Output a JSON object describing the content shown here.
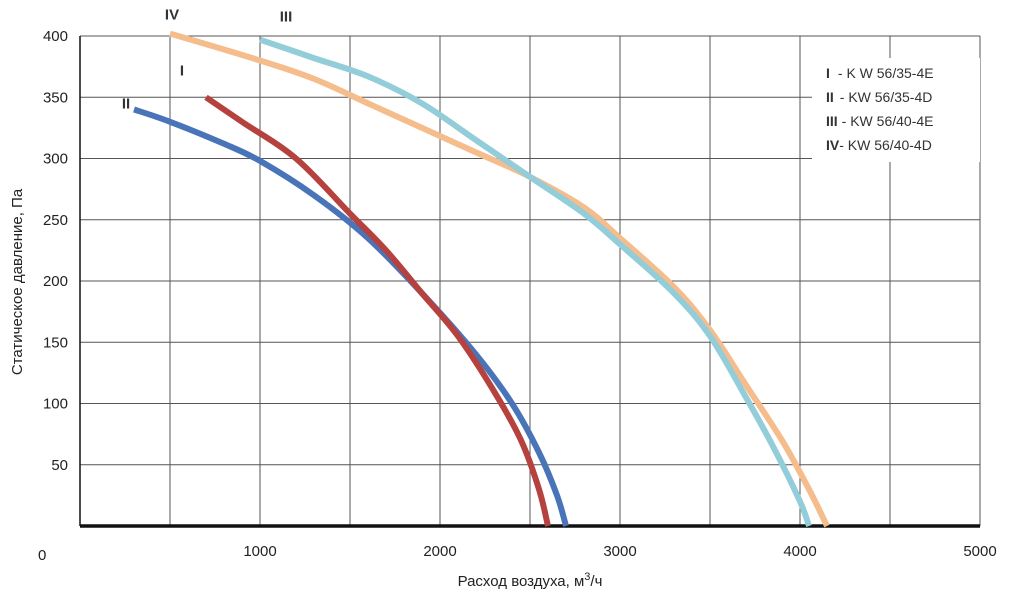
{
  "chart_data": {
    "type": "line",
    "xlabel": "Расход воздуха, м",
    "xlabel_sup": "3",
    "xlabel_suffix": "/ч",
    "ylabel": "Статическое давление, Па",
    "origin_label": "0",
    "xlim": [
      0,
      5000
    ],
    "ylim": [
      0,
      400
    ],
    "x_ticks": [
      "1000",
      "2000",
      "3000",
      "4000",
      "5000"
    ],
    "y_ticks": [
      "50",
      "100",
      "150",
      "200",
      "250",
      "300",
      "350",
      "400"
    ],
    "grid": true,
    "legend_position": "top-right",
    "legend": [
      {
        "roman": "I",
        "text": "- K W 56/35-4E"
      },
      {
        "roman": "II",
        "text": "- KW 56/35-4D"
      },
      {
        "roman": "III",
        "text": "- KW 56/40-4E"
      },
      {
        "roman": "IV",
        "text": "- KW 56/40-4D"
      }
    ],
    "series": [
      {
        "name": "I",
        "color": "#b5423f",
        "points": [
          [
            700,
            350
          ],
          [
            900,
            330
          ],
          [
            1200,
            300
          ],
          [
            1500,
            255
          ],
          [
            1700,
            225
          ],
          [
            1900,
            190
          ],
          [
            2100,
            155
          ],
          [
            2300,
            110
          ],
          [
            2450,
            70
          ],
          [
            2550,
            30
          ],
          [
            2600,
            0
          ]
        ]
      },
      {
        "name": "II",
        "color": "#4a74b8",
        "points": [
          [
            300,
            340
          ],
          [
            500,
            330
          ],
          [
            800,
            312
          ],
          [
            1000,
            298
          ],
          [
            1300,
            270
          ],
          [
            1600,
            235
          ],
          [
            1900,
            190
          ],
          [
            2200,
            140
          ],
          [
            2400,
            100
          ],
          [
            2550,
            60
          ],
          [
            2650,
            25
          ],
          [
            2700,
            0
          ]
        ]
      },
      {
        "name": "III",
        "color": "#93cdd9",
        "points": [
          [
            1000,
            397
          ],
          [
            1300,
            382
          ],
          [
            1600,
            367
          ],
          [
            1900,
            345
          ],
          [
            2200,
            315
          ],
          [
            2500,
            285
          ],
          [
            2800,
            255
          ],
          [
            3000,
            230
          ],
          [
            3300,
            190
          ],
          [
            3500,
            155
          ],
          [
            3700,
            105
          ],
          [
            3850,
            65
          ],
          [
            4000,
            20
          ],
          [
            4050,
            0
          ]
        ]
      },
      {
        "name": "IV",
        "color": "#f5bc8c",
        "points": [
          [
            500,
            402
          ],
          [
            1000,
            380
          ],
          [
            1300,
            365
          ],
          [
            1600,
            345
          ],
          [
            1900,
            325
          ],
          [
            2200,
            305
          ],
          [
            2500,
            285
          ],
          [
            2800,
            260
          ],
          [
            3000,
            235
          ],
          [
            3300,
            195
          ],
          [
            3500,
            160
          ],
          [
            3700,
            115
          ],
          [
            3900,
            70
          ],
          [
            4050,
            30
          ],
          [
            4150,
            0
          ]
        ]
      }
    ]
  }
}
